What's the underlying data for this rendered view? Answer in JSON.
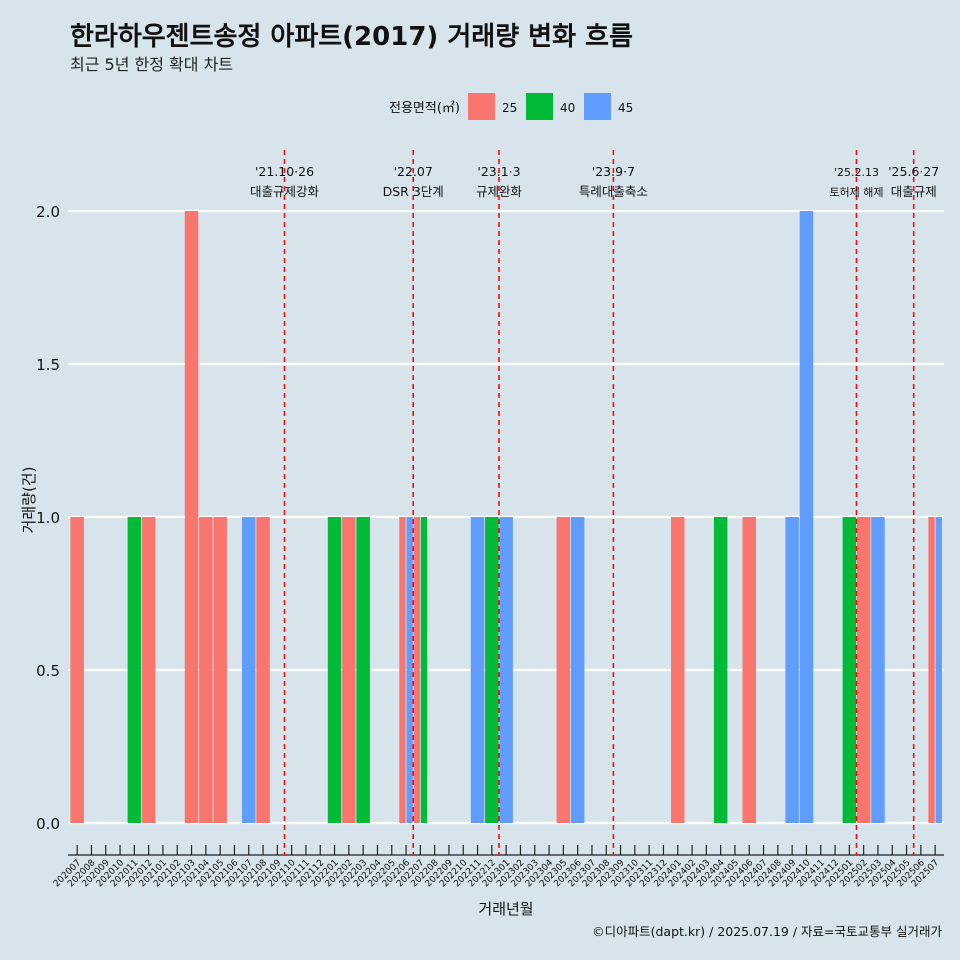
{
  "title": "한라하우젠트송정 아파트(2017) 거래량 변화 흐름",
  "subtitle": "최근 5년 한정 확대 차트",
  "footer": "©디아파트(dapt.kr) / 2025.07.19 / 자료=국토교통부 실거래가",
  "chart_data": {
    "type": "bar",
    "xlabel": "거래년월",
    "ylabel": "거래량(건)",
    "ylim": [
      0,
      2
    ],
    "yticks": [
      "0.0",
      "0.5",
      "1.0",
      "1.5",
      "2.0"
    ],
    "grid": true,
    "legend": {
      "title": "전용면적(㎡)",
      "placement": "top",
      "items": [
        {
          "name": "25",
          "color": "#f8766d"
        },
        {
          "name": "40",
          "color": "#00ba38"
        },
        {
          "name": "45",
          "color": "#619cff"
        }
      ]
    },
    "categories": [
      "202007",
      "202008",
      "202009",
      "202010",
      "202011",
      "202012",
      "202101",
      "202102",
      "202103",
      "202104",
      "202105",
      "202106",
      "202107",
      "202108",
      "202109",
      "202110",
      "202111",
      "202112",
      "202201",
      "202202",
      "202203",
      "202204",
      "202205",
      "202206",
      "202207",
      "202208",
      "202209",
      "202210",
      "202211",
      "202212",
      "202301",
      "202302",
      "202303",
      "202304",
      "202305",
      "202306",
      "202307",
      "202308",
      "202309",
      "202310",
      "202311",
      "202312",
      "202401",
      "202402",
      "202403",
      "202404",
      "202405",
      "202406",
      "202407",
      "202408",
      "202409",
      "202410",
      "202411",
      "202412",
      "202501",
      "202502",
      "202503",
      "202504",
      "202505",
      "202506",
      "202507"
    ],
    "series": [
      {
        "name": "25",
        "values": [
          1,
          0,
          0,
          0,
          0,
          1,
          0,
          0,
          2,
          1,
          1,
          0,
          0,
          1,
          0,
          0,
          0,
          0,
          0,
          1,
          0,
          0,
          0,
          1,
          1,
          0,
          0,
          0,
          0,
          0,
          0,
          0,
          0,
          0,
          1,
          0,
          0,
          0,
          0,
          0,
          0,
          0,
          1,
          0,
          0,
          0,
          0,
          1,
          0,
          0,
          0,
          0,
          0,
          0,
          0,
          1,
          0,
          0,
          0,
          0,
          1
        ]
      },
      {
        "name": "40",
        "values": [
          0,
          0,
          0,
          0,
          1,
          0,
          0,
          0,
          0,
          0,
          0,
          0,
          0,
          0,
          0,
          0,
          0,
          0,
          1,
          0,
          1,
          0,
          0,
          0,
          1,
          0,
          0,
          0,
          0,
          1,
          0,
          0,
          0,
          0,
          0,
          0,
          0,
          0,
          0,
          0,
          0,
          0,
          0,
          0,
          0,
          1,
          0,
          0,
          0,
          0,
          0,
          0,
          0,
          0,
          1,
          0,
          0,
          0,
          0,
          0,
          0
        ]
      },
      {
        "name": "45",
        "values": [
          0,
          0,
          0,
          0,
          0,
          0,
          0,
          0,
          0,
          0,
          0,
          0,
          1,
          0,
          0,
          0,
          0,
          0,
          0,
          0,
          0,
          0,
          0,
          1,
          0,
          0,
          0,
          0,
          1,
          0,
          1,
          0,
          0,
          0,
          0,
          1,
          0,
          0,
          0,
          0,
          0,
          0,
          0,
          0,
          0,
          0,
          0,
          0,
          0,
          0,
          1,
          2,
          0,
          0,
          0,
          0,
          1,
          0,
          0,
          0,
          1
        ]
      }
    ],
    "annotations": [
      {
        "x": 15.0,
        "lines": [
          "'21.10·26",
          "대출규제강화"
        ],
        "small": false
      },
      {
        "x": 24.0,
        "lines": [
          "'22.07",
          "DSR 3단계"
        ],
        "small": false
      },
      {
        "x": 30.0,
        "lines": [
          "'23.1·3",
          "규제완화"
        ],
        "small": false
      },
      {
        "x": 38.0,
        "lines": [
          "'23.9·7",
          "특례대출축소"
        ],
        "small": false
      },
      {
        "x": 55.0,
        "lines": [
          "'25.2.13",
          "토허제 해제"
        ],
        "small": true
      },
      {
        "x": 59.0,
        "lines": [
          "'25.6·27",
          "대출규제"
        ],
        "small": false
      }
    ]
  }
}
